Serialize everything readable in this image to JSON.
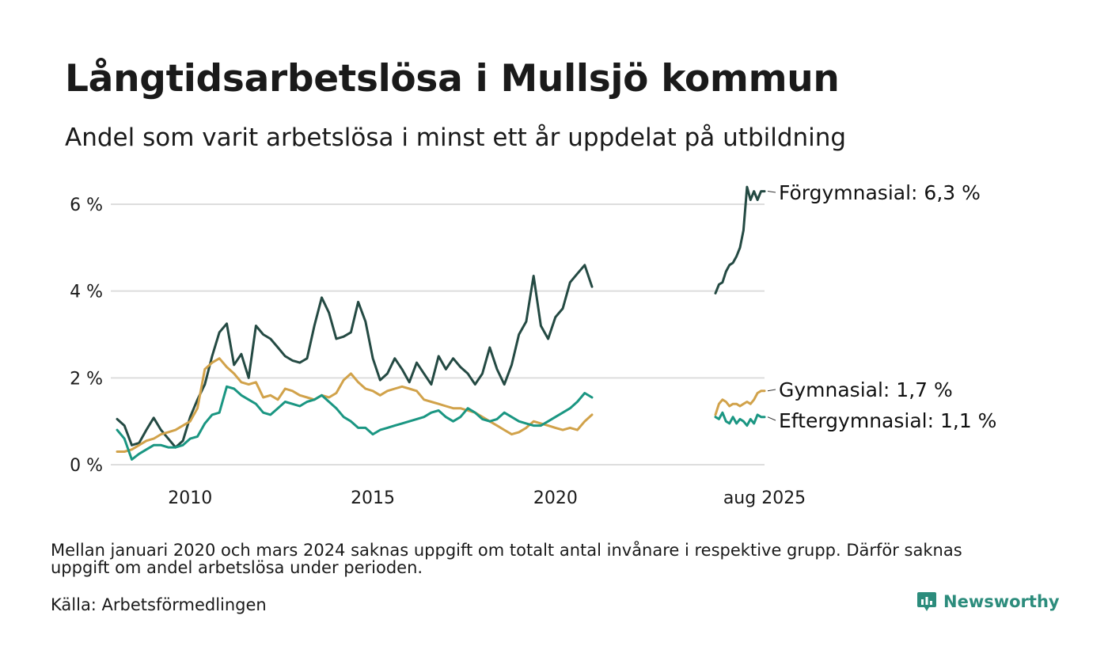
{
  "title": "Långtidsarbetslösa i Mullsjö kommun",
  "subtitle": "Andel som varit arbetslösa i minst ett år uppdelat på utbildning",
  "note": "Mellan januari 2020 och mars 2024 saknas uppgift om totalt antal invånare i respektive grupp. Därför saknas uppgift om andel arbetslösa under perioden.",
  "source": "Källa: Arbetsförmedlingen",
  "brand": "Newsworthy",
  "colors": {
    "forgymnasial": "#244a43",
    "gymnasial": "#d1a24a",
    "eftergymnasial": "#1a9682",
    "grid": "#dddddd",
    "brand": "#2c8c7c"
  },
  "chart_data": {
    "type": "line",
    "y_unit": "%",
    "ylim": [
      0,
      6.6
    ],
    "y_ticks": [
      {
        "value": 0,
        "label": "0 %"
      },
      {
        "value": 2,
        "label": "2 %"
      },
      {
        "value": 4,
        "label": "4 %"
      },
      {
        "value": 6,
        "label": "6 %"
      }
    ],
    "x_ticks": [
      {
        "value": 2010,
        "label": "2010",
        "segment": 0
      },
      {
        "value": 2015,
        "label": "2015",
        "segment": 0
      },
      {
        "value": 2020,
        "label": "2020",
        "segment": 0
      },
      {
        "value": 2025.6,
        "label": "aug 2025",
        "segment": 1
      }
    ],
    "segments": [
      {
        "x_range": [
          2008.0,
          2021.0
        ]
      },
      {
        "x_range": [
          2024.2,
          2025.6
        ]
      }
    ],
    "grid": "horizontal",
    "series": [
      {
        "key": "forgymnasial",
        "name": "Förgymnasial",
        "end_label": "Förgymnasial: 6,3 %",
        "segments": [
          [
            [
              2008.0,
              1.05
            ],
            [
              2008.2,
              0.9
            ],
            [
              2008.4,
              0.45
            ],
            [
              2008.6,
              0.5
            ],
            [
              2008.8,
              0.8
            ],
            [
              2009.0,
              1.08
            ],
            [
              2009.2,
              0.8
            ],
            [
              2009.4,
              0.6
            ],
            [
              2009.6,
              0.4
            ],
            [
              2009.8,
              0.55
            ],
            [
              2010.0,
              1.1
            ],
            [
              2010.2,
              1.5
            ],
            [
              2010.4,
              1.85
            ],
            [
              2010.6,
              2.5
            ],
            [
              2010.8,
              3.05
            ],
            [
              2011.0,
              3.25
            ],
            [
              2011.2,
              2.3
            ],
            [
              2011.4,
              2.55
            ],
            [
              2011.6,
              2.0
            ],
            [
              2011.8,
              3.2
            ],
            [
              2012.0,
              3.0
            ],
            [
              2012.2,
              2.9
            ],
            [
              2012.4,
              2.7
            ],
            [
              2012.6,
              2.5
            ],
            [
              2012.8,
              2.4
            ],
            [
              2013.0,
              2.35
            ],
            [
              2013.2,
              2.45
            ],
            [
              2013.4,
              3.2
            ],
            [
              2013.6,
              3.85
            ],
            [
              2013.8,
              3.5
            ],
            [
              2014.0,
              2.9
            ],
            [
              2014.2,
              2.95
            ],
            [
              2014.4,
              3.05
            ],
            [
              2014.6,
              3.75
            ],
            [
              2014.8,
              3.3
            ],
            [
              2015.0,
              2.45
            ],
            [
              2015.2,
              1.95
            ],
            [
              2015.4,
              2.1
            ],
            [
              2015.6,
              2.45
            ],
            [
              2015.8,
              2.2
            ],
            [
              2016.0,
              1.9
            ],
            [
              2016.2,
              2.35
            ],
            [
              2016.4,
              2.1
            ],
            [
              2016.6,
              1.85
            ],
            [
              2016.8,
              2.5
            ],
            [
              2017.0,
              2.2
            ],
            [
              2017.2,
              2.45
            ],
            [
              2017.4,
              2.25
            ],
            [
              2017.6,
              2.1
            ],
            [
              2017.8,
              1.85
            ],
            [
              2018.0,
              2.1
            ],
            [
              2018.2,
              2.7
            ],
            [
              2018.4,
              2.2
            ],
            [
              2018.6,
              1.85
            ],
            [
              2018.8,
              2.3
            ],
            [
              2019.0,
              3.0
            ],
            [
              2019.2,
              3.3
            ],
            [
              2019.4,
              4.35
            ],
            [
              2019.6,
              3.2
            ],
            [
              2019.8,
              2.9
            ],
            [
              2020.0,
              3.4
            ],
            [
              2020.2,
              3.6
            ],
            [
              2020.4,
              4.2
            ],
            [
              2020.6,
              4.4
            ],
            [
              2020.8,
              4.6
            ],
            [
              2021.0,
              4.1
            ]
          ],
          [
            [
              2024.2,
              3.95
            ],
            [
              2024.3,
              4.15
            ],
            [
              2024.4,
              4.2
            ],
            [
              2024.5,
              4.45
            ],
            [
              2024.6,
              4.6
            ],
            [
              2024.7,
              4.65
            ],
            [
              2024.8,
              4.8
            ],
            [
              2024.9,
              5.0
            ],
            [
              2025.0,
              5.4
            ],
            [
              2025.1,
              6.4
            ],
            [
              2025.2,
              6.1
            ],
            [
              2025.3,
              6.3
            ],
            [
              2025.4,
              6.1
            ],
            [
              2025.5,
              6.3
            ],
            [
              2025.6,
              6.3
            ]
          ]
        ]
      },
      {
        "key": "gymnasial",
        "name": "Gymnasial",
        "end_label": "Gymnasial: 1,7 %",
        "segments": [
          [
            [
              2008.0,
              0.3
            ],
            [
              2008.2,
              0.3
            ],
            [
              2008.4,
              0.35
            ],
            [
              2008.6,
              0.45
            ],
            [
              2008.8,
              0.55
            ],
            [
              2009.0,
              0.6
            ],
            [
              2009.2,
              0.7
            ],
            [
              2009.4,
              0.75
            ],
            [
              2009.6,
              0.8
            ],
            [
              2009.8,
              0.9
            ],
            [
              2010.0,
              1.0
            ],
            [
              2010.2,
              1.3
            ],
            [
              2010.4,
              2.2
            ],
            [
              2010.6,
              2.35
            ],
            [
              2010.8,
              2.45
            ],
            [
              2011.0,
              2.25
            ],
            [
              2011.2,
              2.1
            ],
            [
              2011.4,
              1.9
            ],
            [
              2011.6,
              1.85
            ],
            [
              2011.8,
              1.9
            ],
            [
              2012.0,
              1.55
            ],
            [
              2012.2,
              1.6
            ],
            [
              2012.4,
              1.5
            ],
            [
              2012.6,
              1.75
            ],
            [
              2012.8,
              1.7
            ],
            [
              2013.0,
              1.6
            ],
            [
              2013.2,
              1.55
            ],
            [
              2013.4,
              1.5
            ],
            [
              2013.6,
              1.6
            ],
            [
              2013.8,
              1.55
            ],
            [
              2014.0,
              1.65
            ],
            [
              2014.2,
              1.95
            ],
            [
              2014.4,
              2.1
            ],
            [
              2014.6,
              1.9
            ],
            [
              2014.8,
              1.75
            ],
            [
              2015.0,
              1.7
            ],
            [
              2015.2,
              1.6
            ],
            [
              2015.4,
              1.7
            ],
            [
              2015.6,
              1.75
            ],
            [
              2015.8,
              1.8
            ],
            [
              2016.0,
              1.75
            ],
            [
              2016.2,
              1.7
            ],
            [
              2016.4,
              1.5
            ],
            [
              2016.6,
              1.45
            ],
            [
              2016.8,
              1.4
            ],
            [
              2017.0,
              1.35
            ],
            [
              2017.2,
              1.3
            ],
            [
              2017.4,
              1.3
            ],
            [
              2017.6,
              1.25
            ],
            [
              2017.8,
              1.2
            ],
            [
              2018.0,
              1.1
            ],
            [
              2018.2,
              1.0
            ],
            [
              2018.4,
              0.9
            ],
            [
              2018.6,
              0.8
            ],
            [
              2018.8,
              0.7
            ],
            [
              2019.0,
              0.75
            ],
            [
              2019.2,
              0.85
            ],
            [
              2019.4,
              1.0
            ],
            [
              2019.6,
              0.95
            ],
            [
              2019.8,
              0.9
            ],
            [
              2020.0,
              0.85
            ],
            [
              2020.2,
              0.8
            ],
            [
              2020.4,
              0.85
            ],
            [
              2020.6,
              0.8
            ],
            [
              2020.8,
              1.0
            ],
            [
              2021.0,
              1.15
            ]
          ],
          [
            [
              2024.2,
              1.15
            ],
            [
              2024.3,
              1.4
            ],
            [
              2024.4,
              1.5
            ],
            [
              2024.5,
              1.45
            ],
            [
              2024.6,
              1.35
            ],
            [
              2024.7,
              1.4
            ],
            [
              2024.8,
              1.4
            ],
            [
              2024.9,
              1.35
            ],
            [
              2025.0,
              1.4
            ],
            [
              2025.1,
              1.45
            ],
            [
              2025.2,
              1.4
            ],
            [
              2025.3,
              1.5
            ],
            [
              2025.4,
              1.65
            ],
            [
              2025.5,
              1.7
            ],
            [
              2025.6,
              1.7
            ]
          ]
        ]
      },
      {
        "key": "eftergymnasial",
        "name": "Eftergymnasial",
        "end_label": "Eftergymnasial: 1,1 %",
        "segments": [
          [
            [
              2008.0,
              0.8
            ],
            [
              2008.2,
              0.6
            ],
            [
              2008.4,
              0.12
            ],
            [
              2008.6,
              0.25
            ],
            [
              2008.8,
              0.35
            ],
            [
              2009.0,
              0.45
            ],
            [
              2009.2,
              0.45
            ],
            [
              2009.4,
              0.4
            ],
            [
              2009.6,
              0.4
            ],
            [
              2009.8,
              0.45
            ],
            [
              2010.0,
              0.6
            ],
            [
              2010.2,
              0.65
            ],
            [
              2010.4,
              0.95
            ],
            [
              2010.6,
              1.15
            ],
            [
              2010.8,
              1.2
            ],
            [
              2011.0,
              1.8
            ],
            [
              2011.2,
              1.75
            ],
            [
              2011.4,
              1.6
            ],
            [
              2011.6,
              1.5
            ],
            [
              2011.8,
              1.4
            ],
            [
              2012.0,
              1.2
            ],
            [
              2012.2,
              1.15
            ],
            [
              2012.4,
              1.3
            ],
            [
              2012.6,
              1.45
            ],
            [
              2012.8,
              1.4
            ],
            [
              2013.0,
              1.35
            ],
            [
              2013.2,
              1.45
            ],
            [
              2013.4,
              1.5
            ],
            [
              2013.6,
              1.6
            ],
            [
              2013.8,
              1.45
            ],
            [
              2014.0,
              1.3
            ],
            [
              2014.2,
              1.1
            ],
            [
              2014.4,
              1.0
            ],
            [
              2014.6,
              0.85
            ],
            [
              2014.8,
              0.85
            ],
            [
              2015.0,
              0.7
            ],
            [
              2015.2,
              0.8
            ],
            [
              2015.4,
              0.85
            ],
            [
              2015.6,
              0.9
            ],
            [
              2015.8,
              0.95
            ],
            [
              2016.0,
              1.0
            ],
            [
              2016.2,
              1.05
            ],
            [
              2016.4,
              1.1
            ],
            [
              2016.6,
              1.2
            ],
            [
              2016.8,
              1.25
            ],
            [
              2017.0,
              1.1
            ],
            [
              2017.2,
              1.0
            ],
            [
              2017.4,
              1.1
            ],
            [
              2017.6,
              1.3
            ],
            [
              2017.8,
              1.2
            ],
            [
              2018.0,
              1.05
            ],
            [
              2018.2,
              1.0
            ],
            [
              2018.4,
              1.05
            ],
            [
              2018.6,
              1.2
            ],
            [
              2018.8,
              1.1
            ],
            [
              2019.0,
              1.0
            ],
            [
              2019.2,
              0.95
            ],
            [
              2019.4,
              0.9
            ],
            [
              2019.6,
              0.9
            ],
            [
              2019.8,
              1.0
            ],
            [
              2020.0,
              1.1
            ],
            [
              2020.2,
              1.2
            ],
            [
              2020.4,
              1.3
            ],
            [
              2020.6,
              1.45
            ],
            [
              2020.8,
              1.65
            ],
            [
              2021.0,
              1.55
            ]
          ],
          [
            [
              2024.2,
              1.1
            ],
            [
              2024.3,
              1.05
            ],
            [
              2024.4,
              1.2
            ],
            [
              2024.5,
              1.0
            ],
            [
              2024.6,
              0.95
            ],
            [
              2024.7,
              1.1
            ],
            [
              2024.8,
              0.95
            ],
            [
              2024.9,
              1.05
            ],
            [
              2025.0,
              1.0
            ],
            [
              2025.1,
              0.9
            ],
            [
              2025.2,
              1.05
            ],
            [
              2025.3,
              0.95
            ],
            [
              2025.4,
              1.15
            ],
            [
              2025.5,
              1.1
            ],
            [
              2025.6,
              1.1
            ]
          ]
        ]
      }
    ]
  }
}
